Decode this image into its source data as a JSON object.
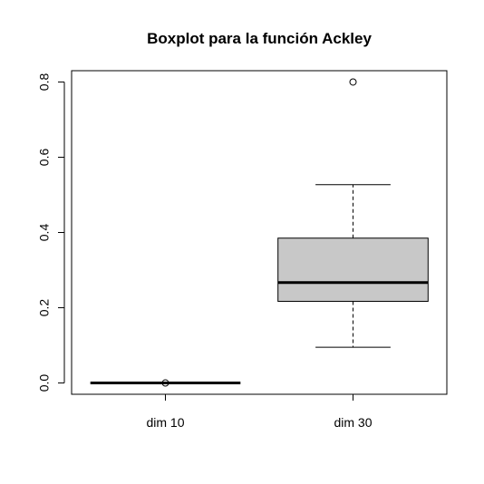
{
  "chart_data": {
    "type": "boxplot",
    "title": "Boxplot para la función Ackley",
    "xlabel": "",
    "ylabel": "",
    "ylim": [
      -0.03,
      0.83
    ],
    "y_ticks": [
      0.0,
      0.2,
      0.4,
      0.6,
      0.8
    ],
    "y_tick_labels": [
      "0.0",
      "0.2",
      "0.4",
      "0.6",
      "0.8"
    ],
    "categories": [
      "dim 10",
      "dim 30"
    ],
    "boxes": [
      {
        "min": 0.0,
        "q1": 0.0,
        "median": 0.0,
        "q3": 0.0,
        "max": 0.0,
        "outliers": [
          0.0
        ]
      },
      {
        "min": 0.095,
        "q1": 0.217,
        "median": 0.267,
        "q3": 0.385,
        "max": 0.527,
        "outliers": [
          0.8
        ]
      }
    ],
    "grid": false,
    "box_fill_color": "#c8c8c8"
  }
}
